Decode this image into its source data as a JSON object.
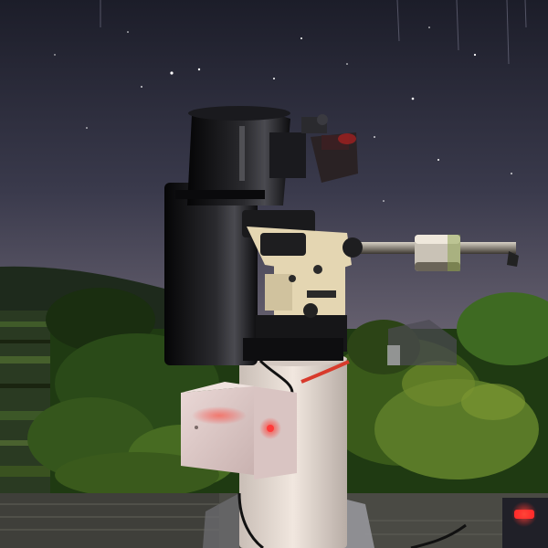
{
  "image": {
    "subject": "telescope-on-pier-at-night",
    "colors": {
      "sky_top": "#1c1d29",
      "sky_mid": "#3a3a4c",
      "sky_horizon": "#6a6472",
      "hill": "#1e2a1c",
      "foliage_dark": "#1f3a12",
      "foliage_light": "#6f8a2c",
      "tube": "#101012",
      "mount_cream": "#e4d6b2",
      "pier": "#e8ded6",
      "control_box": "#e2d2d0",
      "red_light": "#ff2a2a",
      "ground": "#4a4a44"
    }
  }
}
